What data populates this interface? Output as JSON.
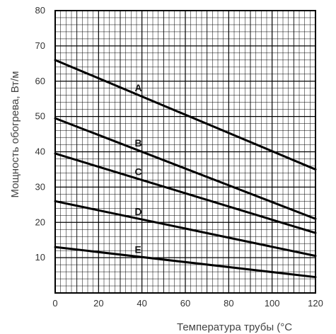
{
  "chart_data": {
    "type": "line",
    "title": "",
    "xlabel": "Температура трубы (°С",
    "ylabel": "Мощность обогрева, Вт/м",
    "xlim": [
      0,
      120
    ],
    "ylim": [
      0,
      80
    ],
    "xticks": [
      0,
      20,
      40,
      60,
      80,
      100,
      120
    ],
    "yticks": [
      10,
      20,
      30,
      40,
      50,
      60,
      70,
      80
    ],
    "grid": "on",
    "series": [
      {
        "name": "A",
        "x": [
          0,
          120
        ],
        "y": [
          66,
          35
        ]
      },
      {
        "name": "B",
        "x": [
          0,
          120
        ],
        "y": [
          49.5,
          21
        ]
      },
      {
        "name": "C",
        "x": [
          0,
          120
        ],
        "y": [
          39.5,
          17
        ]
      },
      {
        "name": "D",
        "x": [
          0,
          120
        ],
        "y": [
          26,
          10.5
        ]
      },
      {
        "name": "E",
        "x": [
          0,
          120
        ],
        "y": [
          13,
          4.5
        ]
      }
    ],
    "colors": {
      "line": "#000000",
      "grid": "#000000",
      "axis_text": "#333333"
    }
  }
}
